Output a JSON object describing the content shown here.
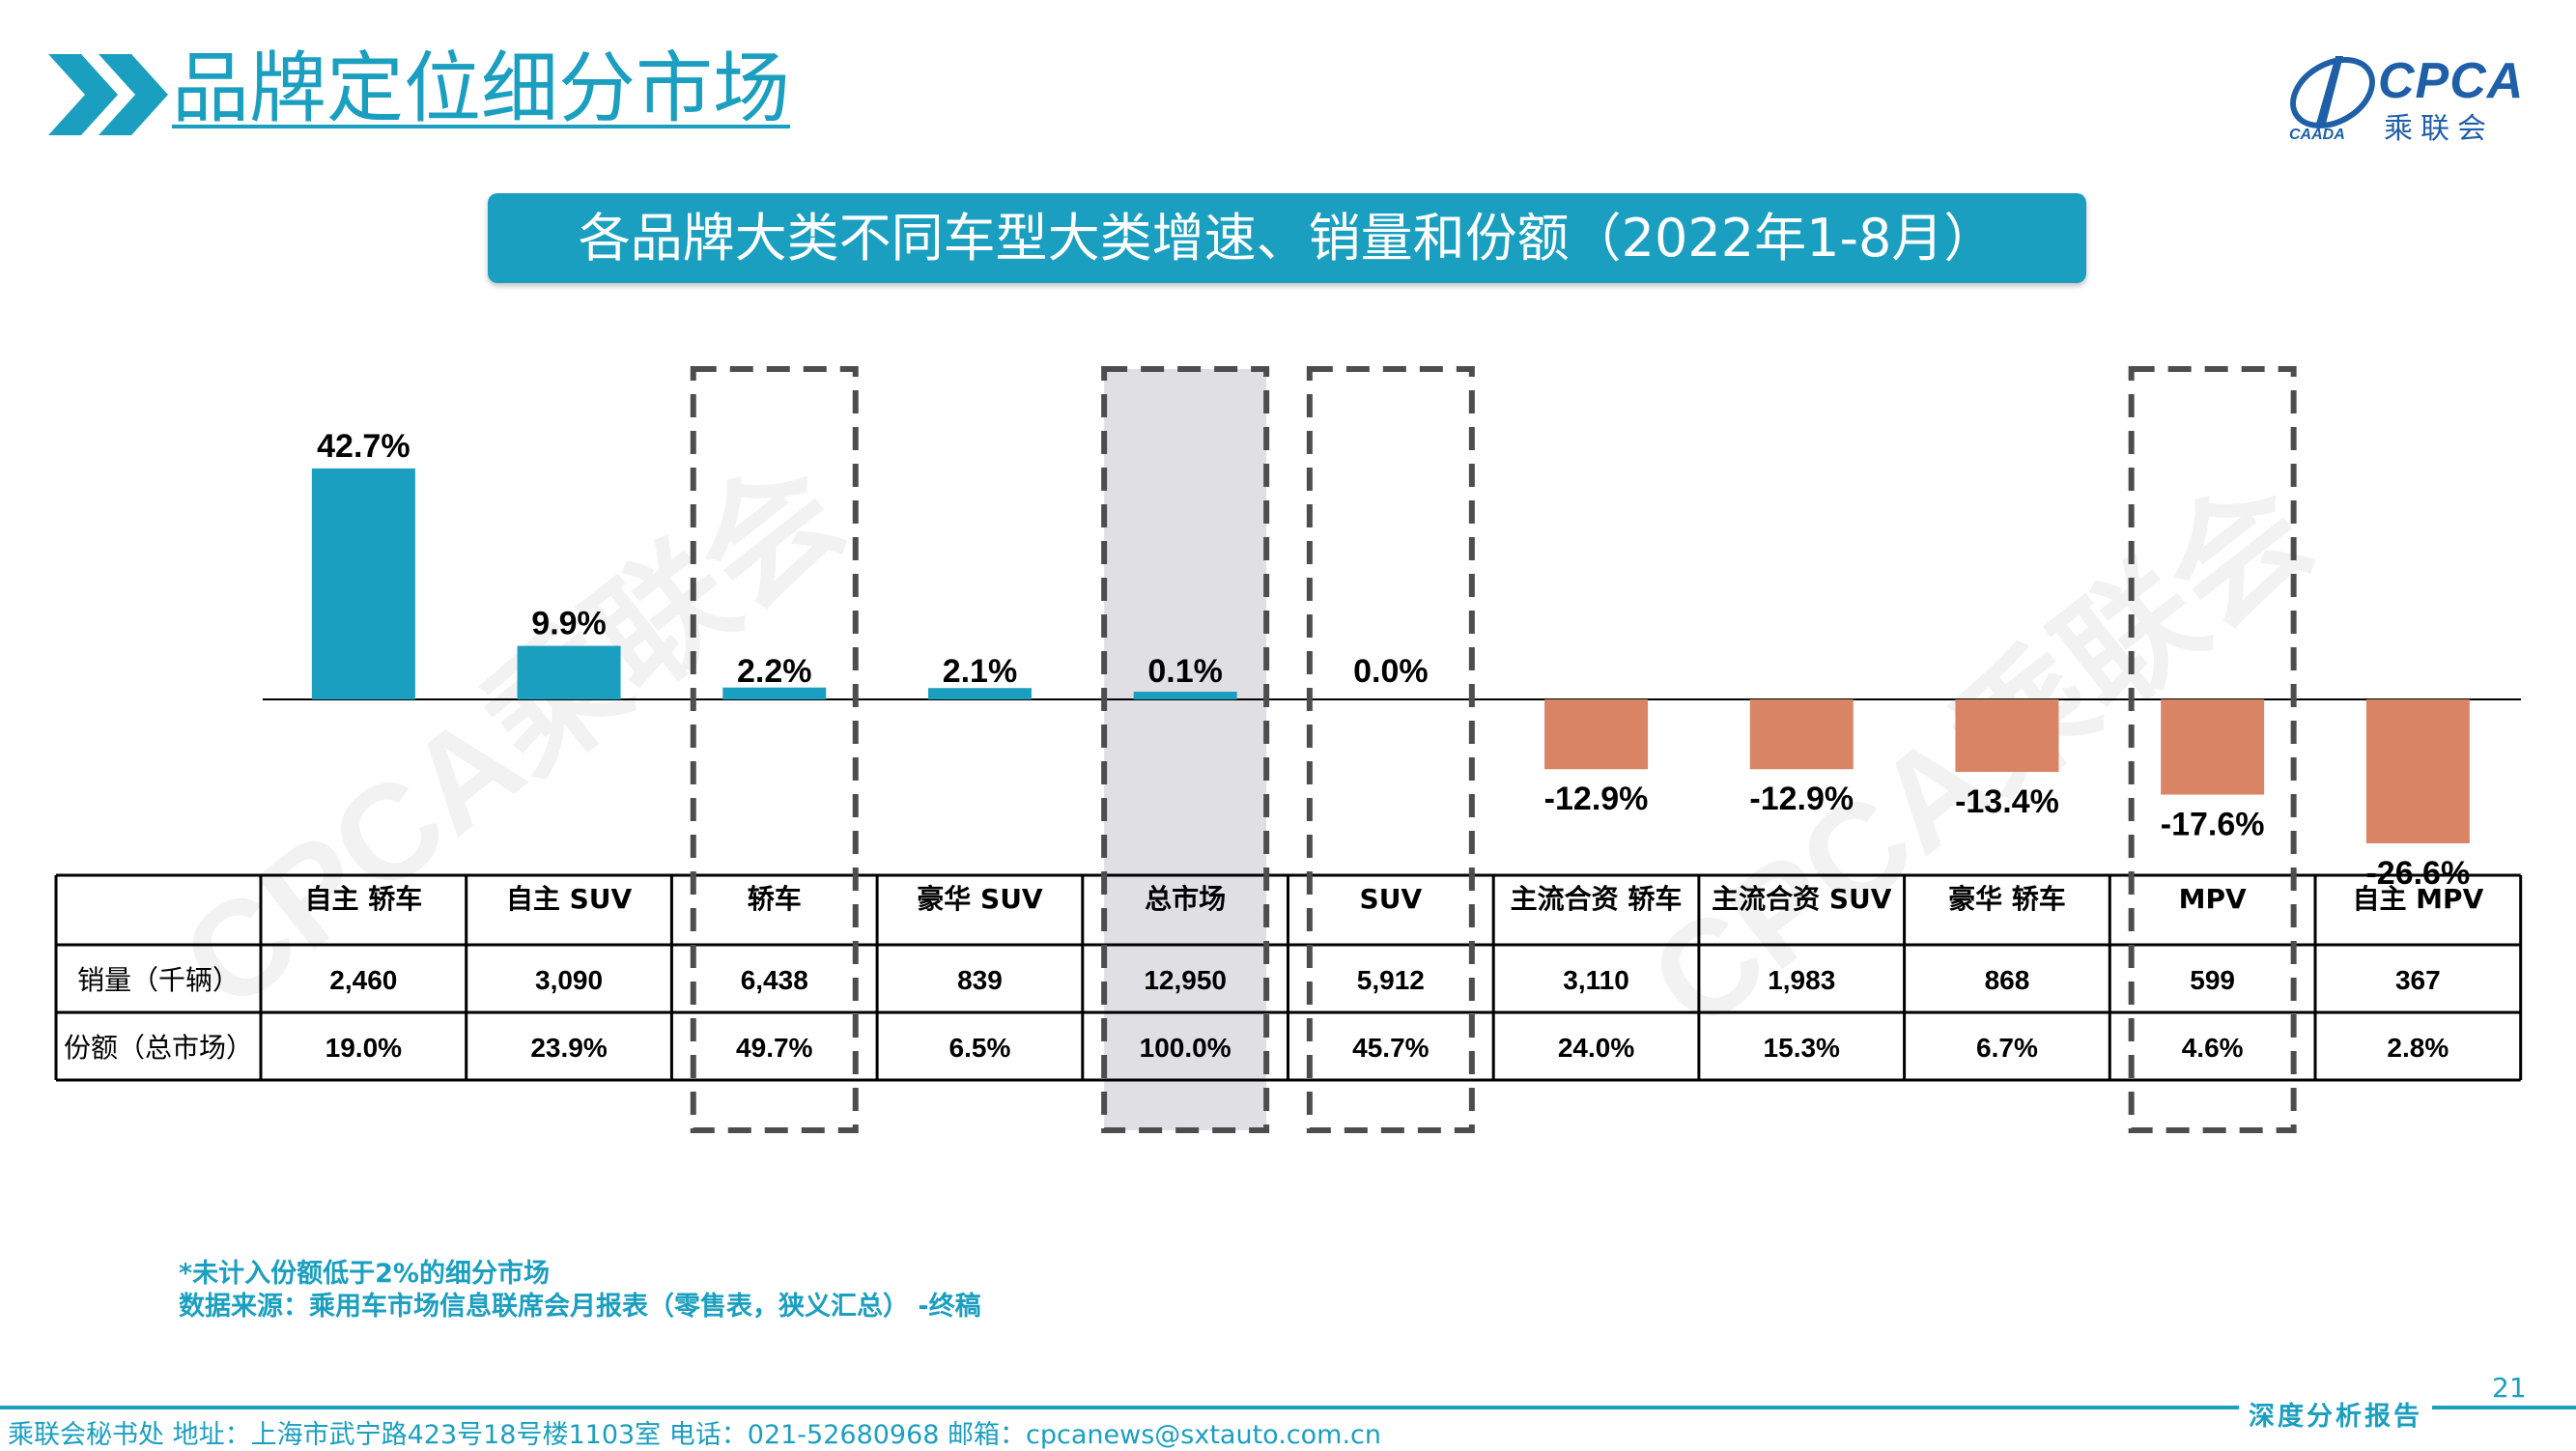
{
  "header": {
    "title": "品牌定位细分市场",
    "logo_text": "CPCA",
    "logo_cn": "乘联会",
    "logo_sub": "CAADA"
  },
  "banner": {
    "title": "各品牌大类不同车型大类增速、销量和份额（2022年1-8月）"
  },
  "watermark": {
    "text": "CPCA乘联会"
  },
  "colors": {
    "accent": "#1b9fc0",
    "positive_bar": "#1b9fc0",
    "negative_bar": "#d98465",
    "highlight_fill": "#e0dfe4",
    "dashed_border": "#4d4d4d"
  },
  "chart_data": {
    "type": "bar",
    "categories": [
      "自主 轿车",
      "自主 SUV",
      "轿车",
      "豪华 SUV",
      "总市场",
      "SUV",
      "主流合资 轿车",
      "主流合资 SUV",
      "豪华 轿车",
      "MPV",
      "自主 MPV"
    ],
    "values": [
      42.7,
      9.9,
      2.2,
      2.1,
      0.1,
      0.0,
      -12.9,
      -12.9,
      -13.4,
      -17.6,
      -26.6
    ],
    "value_labels": [
      "42.7%",
      "9.9%",
      "2.2%",
      "2.1%",
      "0.1%",
      "0.0%",
      "-12.9%",
      "-12.9%",
      "-13.4%",
      "-17.6%",
      "-26.6%"
    ],
    "title": "",
    "xlabel": "",
    "ylabel": "",
    "ylim": [
      -30,
      45
    ],
    "grid": false,
    "highlighted_categories": [
      "轿车",
      "总市场",
      "SUV",
      "MPV"
    ],
    "highlight_style": {
      "总市场": "filled",
      "轿车": "dashed",
      "SUV": "dashed",
      "MPV": "dashed"
    }
  },
  "table": {
    "row_labels": [
      "销量（千辆）",
      "份额（总市场）"
    ],
    "sales": [
      "2,460",
      "3,090",
      "6,438",
      "839",
      "12,950",
      "5,912",
      "3,110",
      "1,983",
      "868",
      "599",
      "367"
    ],
    "shares": [
      "19.0%",
      "23.9%",
      "49.7%",
      "6.5%",
      "100.0%",
      "45.7%",
      "24.0%",
      "15.3%",
      "6.7%",
      "4.6%",
      "2.8%"
    ]
  },
  "notes": {
    "note1": "*未计入份额低于2%的细分市场",
    "note2": "数据来源：乘用车市场信息联席会月报表（零售表，狭义汇总） -终稿"
  },
  "page": {
    "number": "21"
  },
  "footer": {
    "contact": "乘联会秘书处   地址：上海市武宁路423号18号楼1103室  电话：021-52680968   邮箱：cpcanews@sxtauto.com.cn",
    "report_label": "深度分析报告"
  }
}
